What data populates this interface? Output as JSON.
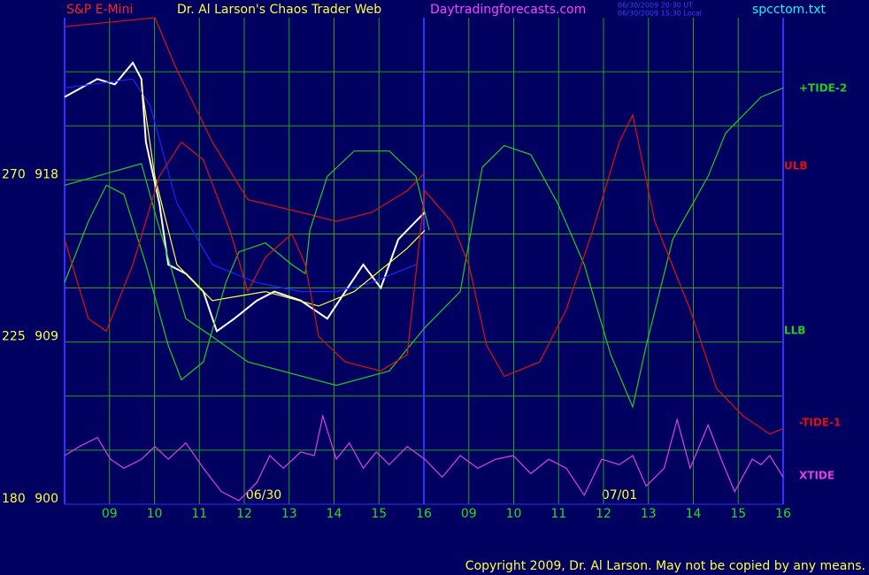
{
  "chart_data": {
    "type": "line",
    "instrument": "S&P E-Mini",
    "title": "Dr. Al Larson's Chaos Trader Web",
    "site": "Daytradingforecasts.com",
    "timestamp_ut": "06/30/2009 20:30 UT",
    "timestamp_local": "06/30/2009 15:30 Local",
    "file": "spcctom.txt",
    "copyright": "Copyright 2009, Dr. Al Larson. May not be copied by any means.",
    "annotations": [
      "06/30",
      "07/01"
    ],
    "background": "#000060",
    "grid": true,
    "grid_color": "#1fa01f",
    "axis_color": "#3030ff",
    "xlim": [
      0,
      16
    ],
    "xticks": [
      {
        "value": 1,
        "label": "09"
      },
      {
        "value": 2,
        "label": "10"
      },
      {
        "value": 3,
        "label": "11"
      },
      {
        "value": 4,
        "label": "12"
      },
      {
        "value": 5,
        "label": "13"
      },
      {
        "value": 6,
        "label": "14"
      },
      {
        "value": 7,
        "label": "15"
      },
      {
        "value": 8,
        "label": "16"
      },
      {
        "value": 9,
        "label": "09"
      },
      {
        "value": 10,
        "label": "10"
      },
      {
        "value": 11,
        "label": "11"
      },
      {
        "value": 12,
        "label": "12"
      },
      {
        "value": 13,
        "label": "13"
      },
      {
        "value": 14,
        "label": "14"
      },
      {
        "value": 15,
        "label": "15"
      },
      {
        "value": 16,
        "label": "16"
      }
    ],
    "ylim": [
      900,
      927
    ],
    "yticks": [
      900,
      909,
      918
    ],
    "ygrid": [
      903,
      906,
      912,
      915,
      921,
      924
    ],
    "y2lim": [
      180,
      315
    ],
    "y2ticks": [
      180,
      225,
      270
    ],
    "series": [
      {
        "color": "#ffffff",
        "x": [
          0,
          0.73,
          1.12,
          1.52,
          1.71,
          1.81,
          2.11,
          2.31,
          2.7,
          3.09,
          3.39,
          3.78,
          4.28,
          4.67,
          5.26,
          5.85,
          6.25,
          6.65,
          7.04,
          7.43,
          7.82,
          8.02
        ],
        "values": [
          922.6,
          923.6,
          923.3,
          924.5,
          923.6,
          920.1,
          916.7,
          913.3,
          912.8,
          911.8,
          909.6,
          910.3,
          911.3,
          911.8,
          911.3,
          910.3,
          911.8,
          913.3,
          912.0,
          914.7,
          915.7,
          916.2
        ]
      },
      {
        "color": "#2020ff",
        "x": [
          0,
          1.52,
          1.91,
          2.5,
          3.29,
          4.28,
          5.26,
          6.05,
          6.84,
          7.82
        ],
        "values": [
          923.1,
          923.6,
          922.1,
          916.7,
          913.3,
          912.3,
          911.8,
          911.8,
          912.3,
          913.3
        ]
      },
      {
        "color": "#ffff40",
        "x": [
          1.71,
          2.01,
          2.5,
          3.29,
          4.47,
          5.66,
          6.45,
          7.63,
          8.02
        ],
        "values": [
          923.3,
          918.2,
          913.3,
          911.3,
          911.8,
          911.0,
          911.8,
          914.2,
          915.2
        ]
      },
      {
        "name": "+TIDE-2",
        "color": "#22cc22",
        "x": [
          0,
          1.71,
          2.01,
          2.7,
          3.29,
          4.08,
          6.05,
          7.23,
          8.02,
          8.81,
          9.3,
          9.79,
          10.38,
          10.98,
          11.57,
          12.16,
          12.65,
          12.95,
          13.54,
          14.33,
          14.72,
          15.51,
          16
        ],
        "values": [
          917.7,
          918.9,
          916.2,
          910.3,
          909.3,
          907.9,
          906.6,
          907.4,
          909.8,
          911.8,
          918.7,
          919.9,
          919.4,
          916.7,
          913.3,
          908.3,
          905.4,
          908.8,
          914.7,
          918.2,
          920.6,
          922.6,
          923.1
        ]
      },
      {
        "name": "ULB",
        "color": "#e01010",
        "x": [
          0,
          2.01,
          2.5,
          3.29,
          4.08,
          5.26,
          6.05,
          6.84,
          7.63,
          8.02
        ],
        "values": [
          926.5,
          927.0,
          924.1,
          920.1,
          916.9,
          916.2,
          915.7,
          916.2,
          917.4,
          918.4
        ]
      },
      {
        "name": "LLB",
        "color": "#22cc22",
        "x": [
          0,
          0.53,
          0.93,
          1.32,
          1.81,
          2.31,
          2.6,
          3.09,
          3.59,
          3.88,
          4.47,
          5.06,
          5.36,
          5.46,
          5.85,
          6.45,
          7.23,
          7.82,
          8.12
        ],
        "values": [
          912.3,
          915.7,
          917.7,
          917.2,
          913.3,
          908.8,
          906.9,
          907.9,
          912.3,
          914.0,
          914.5,
          913.3,
          912.8,
          915.2,
          918.2,
          919.6,
          919.6,
          918.2,
          915.2
        ]
      },
      {
        "name": "-TIDE-1",
        "color": "#e01010",
        "x": [
          0,
          0.53,
          0.93,
          1.52,
          2.11,
          2.6,
          3.09,
          3.68,
          4.08,
          4.47,
          5.06,
          5.36,
          5.66,
          6.25,
          7.04,
          7.63,
          8.02,
          8.61,
          9.0,
          9.4,
          9.79,
          10.58,
          11.17,
          11.76,
          12.35,
          12.65,
          13.14,
          13.93,
          14.52,
          15.11,
          15.7,
          16
        ],
        "values": [
          914.7,
          910.3,
          909.6,
          913.3,
          918.2,
          920.1,
          919.1,
          915.2,
          911.8,
          913.7,
          915.0,
          913.3,
          909.3,
          907.9,
          907.4,
          908.3,
          917.4,
          915.7,
          913.3,
          908.8,
          907.1,
          907.9,
          910.8,
          915.2,
          920.1,
          921.6,
          915.7,
          910.8,
          906.4,
          904.9,
          903.9,
          904.2
        ]
      },
      {
        "name": "XTIDE",
        "color": "#e040e0",
        "x": [
          0,
          0.33,
          0.73,
          1.02,
          1.32,
          1.71,
          2.01,
          2.31,
          2.7,
          3.09,
          3.49,
          3.88,
          4.28,
          4.57,
          4.87,
          5.26,
          5.56,
          5.75,
          6.05,
          6.34,
          6.65,
          6.94,
          7.23,
          7.63,
          8.02,
          8.41,
          8.81,
          9.2,
          9.6,
          9.99,
          10.38,
          10.78,
          11.17,
          11.57,
          11.96,
          12.35,
          12.65,
          12.95,
          13.35,
          13.64,
          13.93,
          14.33,
          14.62,
          14.92,
          15.31,
          15.51,
          15.7,
          16
        ],
        "values": [
          902.7,
          903.2,
          903.7,
          902.5,
          902.0,
          902.5,
          903.2,
          902.5,
          903.4,
          902.0,
          900.7,
          900.2,
          901.2,
          902.7,
          902.0,
          902.9,
          902.7,
          904.9,
          902.5,
          903.4,
          902.0,
          902.9,
          902.2,
          903.2,
          902.5,
          901.5,
          902.7,
          902.0,
          902.5,
          902.7,
          901.7,
          902.5,
          902.0,
          900.5,
          902.5,
          902.2,
          902.7,
          901.0,
          902.0,
          904.7,
          902.0,
          904.4,
          902.5,
          900.7,
          902.5,
          902.2,
          902.7,
          901.5
        ]
      }
    ]
  }
}
